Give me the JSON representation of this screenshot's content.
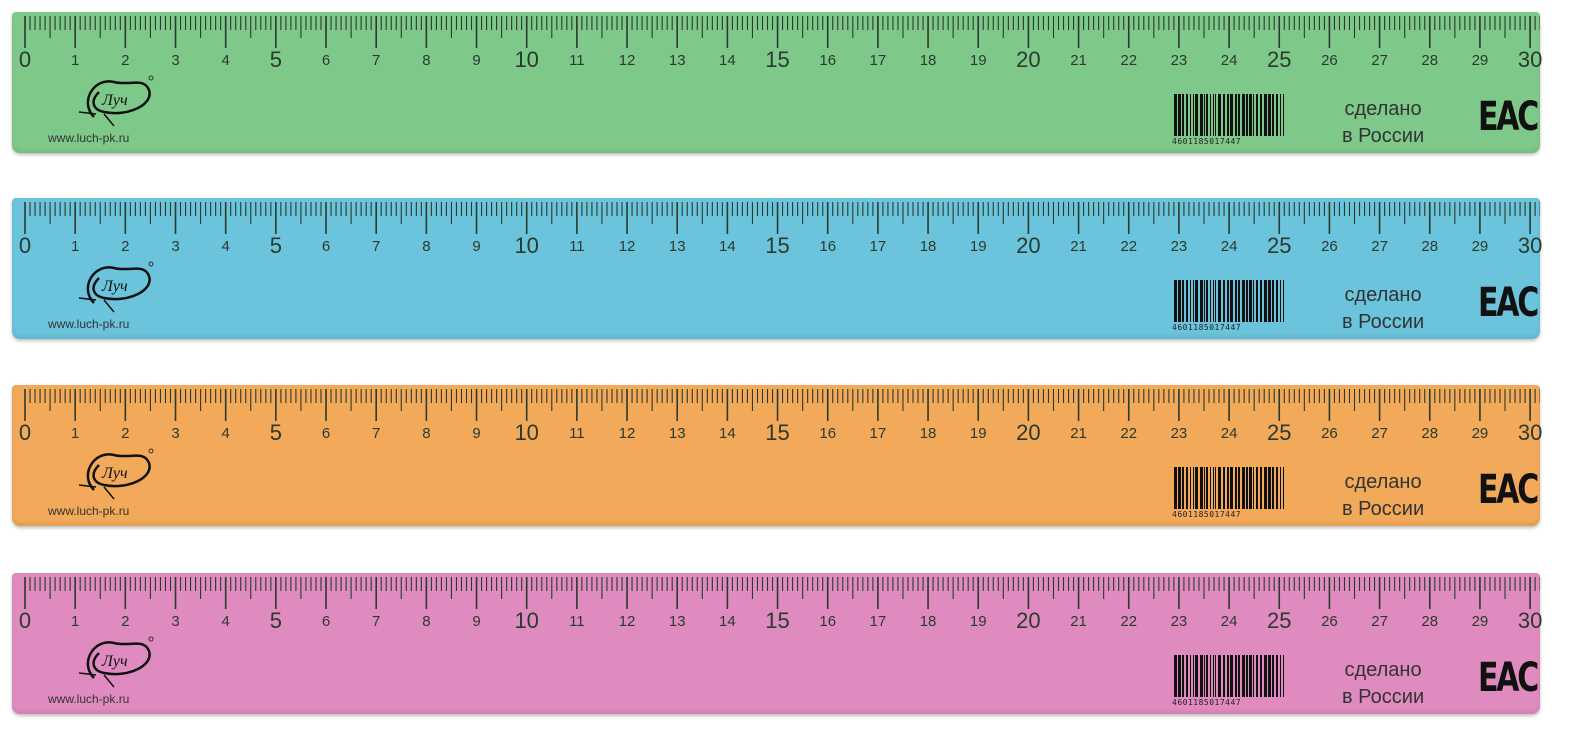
{
  "rulers": [
    {
      "color": "#7ec98a",
      "name": "green"
    },
    {
      "color": "#6bc4db",
      "name": "blue"
    },
    {
      "color": "#f2a95a",
      "name": "orange"
    },
    {
      "color": "#e08bbf",
      "name": "pink"
    }
  ],
  "scale": {
    "min": 0,
    "max": 30,
    "unit": "cm",
    "labels": [
      "0",
      "1",
      "2",
      "3",
      "4",
      "5",
      "6",
      "7",
      "8",
      "9",
      "10",
      "11",
      "12",
      "13",
      "14",
      "15",
      "16",
      "17",
      "18",
      "19",
      "20",
      "21",
      "22",
      "23",
      "24",
      "25",
      "26",
      "27",
      "28",
      "29",
      "30"
    ]
  },
  "branding": {
    "logo_text": "Луч",
    "url": "www.luch-pk.ru"
  },
  "barcode": {
    "digits": "4601185017447"
  },
  "made_in": {
    "line1": "сделано",
    "line2": "в России"
  },
  "certification": {
    "mark": "EAC"
  },
  "tick_color": "#2a3a2c"
}
